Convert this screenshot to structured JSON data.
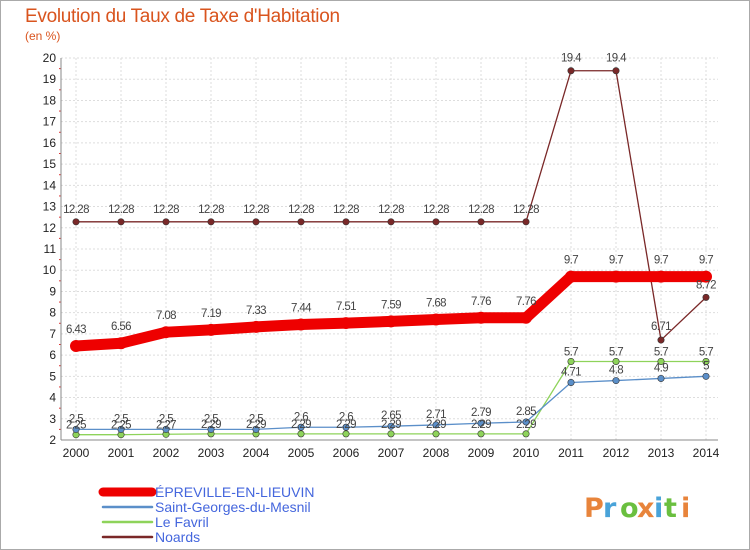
{
  "header": {
    "title": "Evolution du Taux de Taxe d'Habitation",
    "unit": "(en %)"
  },
  "logo": {
    "text": "Proxiti",
    "colors": [
      "#e8843b",
      "#49a3d9",
      "#6abf3f",
      "#e8843b",
      "#49a3d9",
      "#6abf3f",
      "#e8843b"
    ]
  },
  "chart_data": {
    "type": "line",
    "title": "Evolution du Taux de Taxe d'Habitation",
    "ylabel": "(en %)",
    "xlabel": "",
    "x": [
      "2000",
      "2001",
      "2002",
      "2003",
      "2004",
      "2005",
      "2006",
      "2007",
      "2008",
      "2009",
      "2010",
      "2011",
      "2012",
      "2013",
      "2014"
    ],
    "ylim": [
      2,
      20
    ],
    "yticks": [
      "2",
      "3",
      "4",
      "5",
      "6",
      "7",
      "8",
      "9",
      "10",
      "11",
      "12",
      "13",
      "14",
      "15",
      "16",
      "17",
      "18",
      "19",
      "20"
    ],
    "grid": true,
    "legend_position": "bottom-left",
    "series": [
      {
        "name": "ÉPREVILLE-EN-LIEUVIN",
        "color": "#ee0000",
        "thick": true,
        "values": [
          6.43,
          6.56,
          7.08,
          7.19,
          7.33,
          7.44,
          7.51,
          7.59,
          7.68,
          7.76,
          7.76,
          9.7,
          9.7,
          9.7,
          9.7
        ],
        "labels": [
          "6.43",
          "6.56",
          "7.08",
          "7.19",
          "7.33",
          "7.44",
          "7.51",
          "7.59",
          "7.68",
          "7.76",
          "7.76",
          "9.7",
          "9.7",
          "9.7",
          "9.7"
        ]
      },
      {
        "name": "Saint-Georges-du-Mesnil",
        "color": "#5b8fc9",
        "thick": false,
        "values": [
          2.5,
          2.5,
          2.5,
          2.5,
          2.5,
          2.6,
          2.6,
          2.65,
          2.71,
          2.79,
          2.85,
          4.71,
          4.8,
          4.9,
          5.0
        ],
        "labels": [
          "2.5",
          "2.5",
          "2.5",
          "2.5",
          "2.5",
          "2.6",
          "2.6",
          "2.65",
          "2.71",
          "2.79",
          "2.85",
          "4.71",
          "4.8",
          "4.9",
          "5"
        ]
      },
      {
        "name": "Le Favril",
        "color": "#8ed35a",
        "thick": false,
        "values": [
          2.25,
          2.25,
          2.27,
          2.29,
          2.29,
          2.29,
          2.29,
          2.29,
          2.29,
          2.29,
          2.29,
          5.7,
          5.7,
          5.7,
          5.7
        ],
        "labels": [
          "2.25",
          "2.25",
          "2.27",
          "2.29",
          "2.29",
          "2.29",
          "2.29",
          "2.29",
          "2.29",
          "2.29",
          "2.29",
          "5.7",
          "5.7",
          "5.7",
          "5.7"
        ]
      },
      {
        "name": "Noards",
        "color": "#7a2828",
        "thick": false,
        "values": [
          12.28,
          12.28,
          12.28,
          12.28,
          12.28,
          12.28,
          12.28,
          12.28,
          12.28,
          12.28,
          12.28,
          19.4,
          19.4,
          6.71,
          8.72
        ],
        "labels": [
          "12.28",
          "12.28",
          "12.28",
          "12.28",
          "12.28",
          "12.28",
          "12.28",
          "12.28",
          "12.28",
          "12.28",
          "12.28",
          "19.4",
          "19.4",
          "6.71",
          "8.72"
        ]
      }
    ]
  }
}
